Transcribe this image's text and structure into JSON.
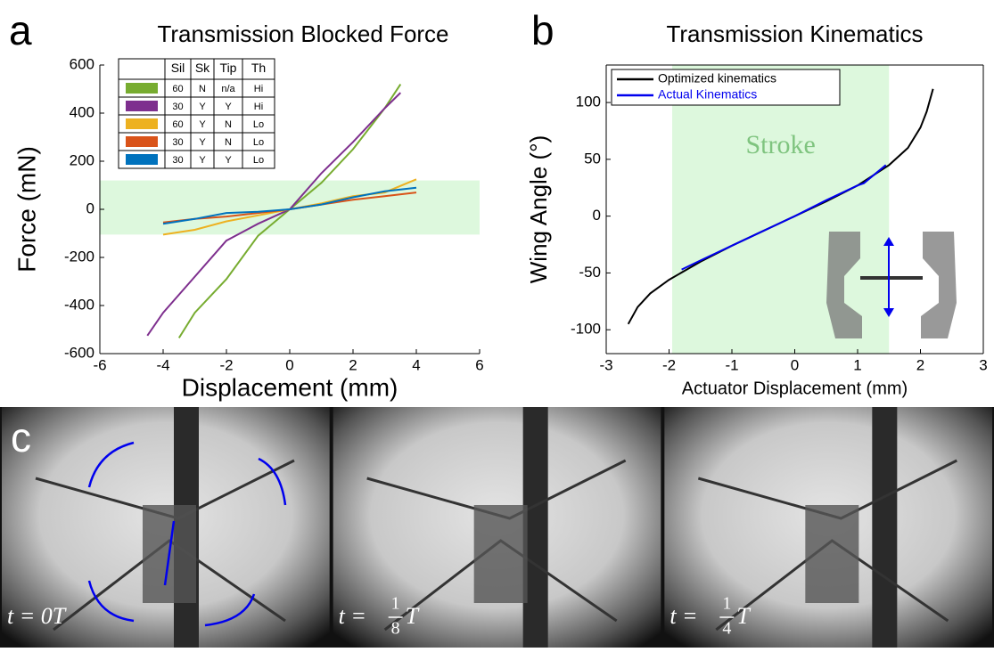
{
  "chart_data": [
    {
      "type": "line",
      "panel_label": "a",
      "title": "Transmission Blocked Force",
      "x_label": "Displacement (mm)",
      "y_label": "Force (mN)",
      "xlim": [
        -6,
        6
      ],
      "xticks": [
        -6,
        -4,
        -2,
        0,
        2,
        4,
        6
      ],
      "ylim": [
        -600,
        600
      ],
      "yticks": [
        -600,
        -400,
        -200,
        0,
        200,
        400,
        600
      ],
      "shaded_band_y": [
        -105,
        120
      ],
      "band_color": "#ddf8dd",
      "legend_header": [
        "Sil",
        "Sk",
        "Tip",
        "Th"
      ],
      "series": [
        {
          "legend_cells": [
            "60",
            "N",
            "n/a",
            "Hi"
          ],
          "color": "#77ac30",
          "x": [
            -3.5,
            -3,
            -2,
            -1,
            0,
            1,
            2,
            3,
            3.5
          ],
          "values": [
            -535,
            -430,
            -290,
            -110,
            0,
            110,
            250,
            420,
            520
          ]
        },
        {
          "legend_cells": [
            "30",
            "Y",
            "Y",
            "Hi"
          ],
          "color": "#7e2f8e",
          "x": [
            -4.5,
            -4,
            -3,
            -2,
            -1,
            0,
            1,
            2,
            3,
            3.5
          ],
          "values": [
            -525,
            -430,
            -280,
            -130,
            -60,
            0,
            150,
            280,
            420,
            485
          ]
        },
        {
          "legend_cells": [
            "60",
            "Y",
            "N",
            "Lo"
          ],
          "color": "#edb120",
          "x": [
            -4,
            -3,
            -2,
            -1,
            0,
            1,
            2,
            3,
            4
          ],
          "values": [
            -105,
            -85,
            -50,
            -25,
            0,
            25,
            55,
            70,
            125
          ]
        },
        {
          "legend_cells": [
            "30",
            "Y",
            "N",
            "Lo"
          ],
          "color": "#d95319",
          "x": [
            -4,
            -3,
            -2,
            -1,
            0,
            1,
            2,
            3,
            4
          ],
          "values": [
            -55,
            -40,
            -30,
            -15,
            0,
            20,
            40,
            55,
            70
          ]
        },
        {
          "legend_cells": [
            "30",
            "Y",
            "Y",
            "Lo"
          ],
          "color": "#0072bd",
          "x": [
            -4,
            -3,
            -2,
            -1,
            0,
            1,
            2,
            3,
            4
          ],
          "values": [
            -60,
            -40,
            -15,
            -10,
            0,
            20,
            50,
            75,
            90
          ]
        }
      ]
    },
    {
      "type": "line",
      "panel_label": "b",
      "title": "Transmission Kinematics",
      "x_label": "Actuator Displacement (mm)",
      "y_label": "Wing Angle (°)",
      "xlim": [
        -3,
        3
      ],
      "xticks": [
        -3,
        -2,
        -1,
        0,
        1,
        2,
        3
      ],
      "ylim": [
        -121,
        133
      ],
      "yticks": [
        -100,
        -50,
        0,
        50,
        100
      ],
      "shaded_band_x": [
        -1.95,
        1.5
      ],
      "band_color": "#ddf8dd",
      "band_label": "Stroke",
      "legend_position": "upper left",
      "series": [
        {
          "name": "Optimized kinematics",
          "color": "#000000",
          "x": [
            -2.65,
            -2.5,
            -2.3,
            -2,
            -1.5,
            -1,
            -0.5,
            0,
            0.5,
            1,
            1.5,
            1.8,
            2,
            2.1,
            2.2
          ],
          "values": [
            -95,
            -80,
            -68,
            -56,
            -40,
            -26,
            -13,
            0,
            13,
            27,
            45,
            60,
            78,
            92,
            112
          ]
        },
        {
          "name": "Actual Kinematics",
          "color": "#0000ee",
          "x": [
            -1.8,
            -1.5,
            -1,
            -0.5,
            0,
            0.5,
            1,
            1.1,
            1.45
          ],
          "values": [
            -47,
            -39,
            -26,
            -13,
            0,
            14,
            27,
            29,
            45
          ]
        }
      ]
    }
  ],
  "photo_panel": {
    "panel_label": "c",
    "frames": [
      {
        "prefix": "t = 0T"
      },
      {
        "prefix": "t =",
        "numerator": "1",
        "denominator": "8",
        "suffix": "T"
      },
      {
        "prefix": "t =",
        "numerator": "1",
        "denominator": "4",
        "suffix": "T"
      }
    ]
  }
}
